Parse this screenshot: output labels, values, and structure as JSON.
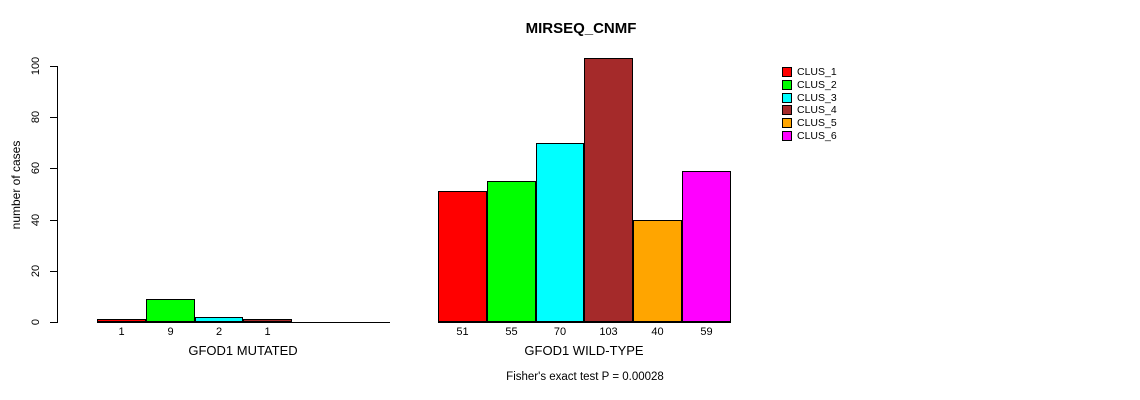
{
  "chart_data": {
    "type": "bar",
    "title": "MIRSEQ_CNMF",
    "ylabel": "number of cases",
    "xlabel": "",
    "ylim": [
      0,
      100
    ],
    "yticks": [
      0,
      20,
      40,
      60,
      80,
      100
    ],
    "grid": false,
    "legend_position": "right",
    "clusters": [
      {
        "name": "CLUS_1",
        "color": "#FF0000"
      },
      {
        "name": "CLUS_2",
        "color": "#00FF00"
      },
      {
        "name": "CLUS_3",
        "color": "#00FFFF"
      },
      {
        "name": "CLUS_4",
        "color": "#A52A2A"
      },
      {
        "name": "CLUS_5",
        "color": "#FFA500"
      },
      {
        "name": "CLUS_6",
        "color": "#FF00FF"
      }
    ],
    "groups": [
      {
        "label": "GFOD1 MUTATED",
        "values": [
          1,
          9,
          2,
          1,
          0,
          0
        ],
        "bar_value_labels": [
          "1",
          "9",
          "2",
          "1",
          "",
          ""
        ]
      },
      {
        "label": "GFOD1 WILD-TYPE",
        "values": [
          51,
          55,
          70,
          103,
          40,
          59
        ],
        "bar_value_labels": [
          "51",
          "55",
          "70",
          "103",
          "40",
          "59"
        ]
      }
    ],
    "annotation": "Fisher's exact test P = 0.00028"
  }
}
